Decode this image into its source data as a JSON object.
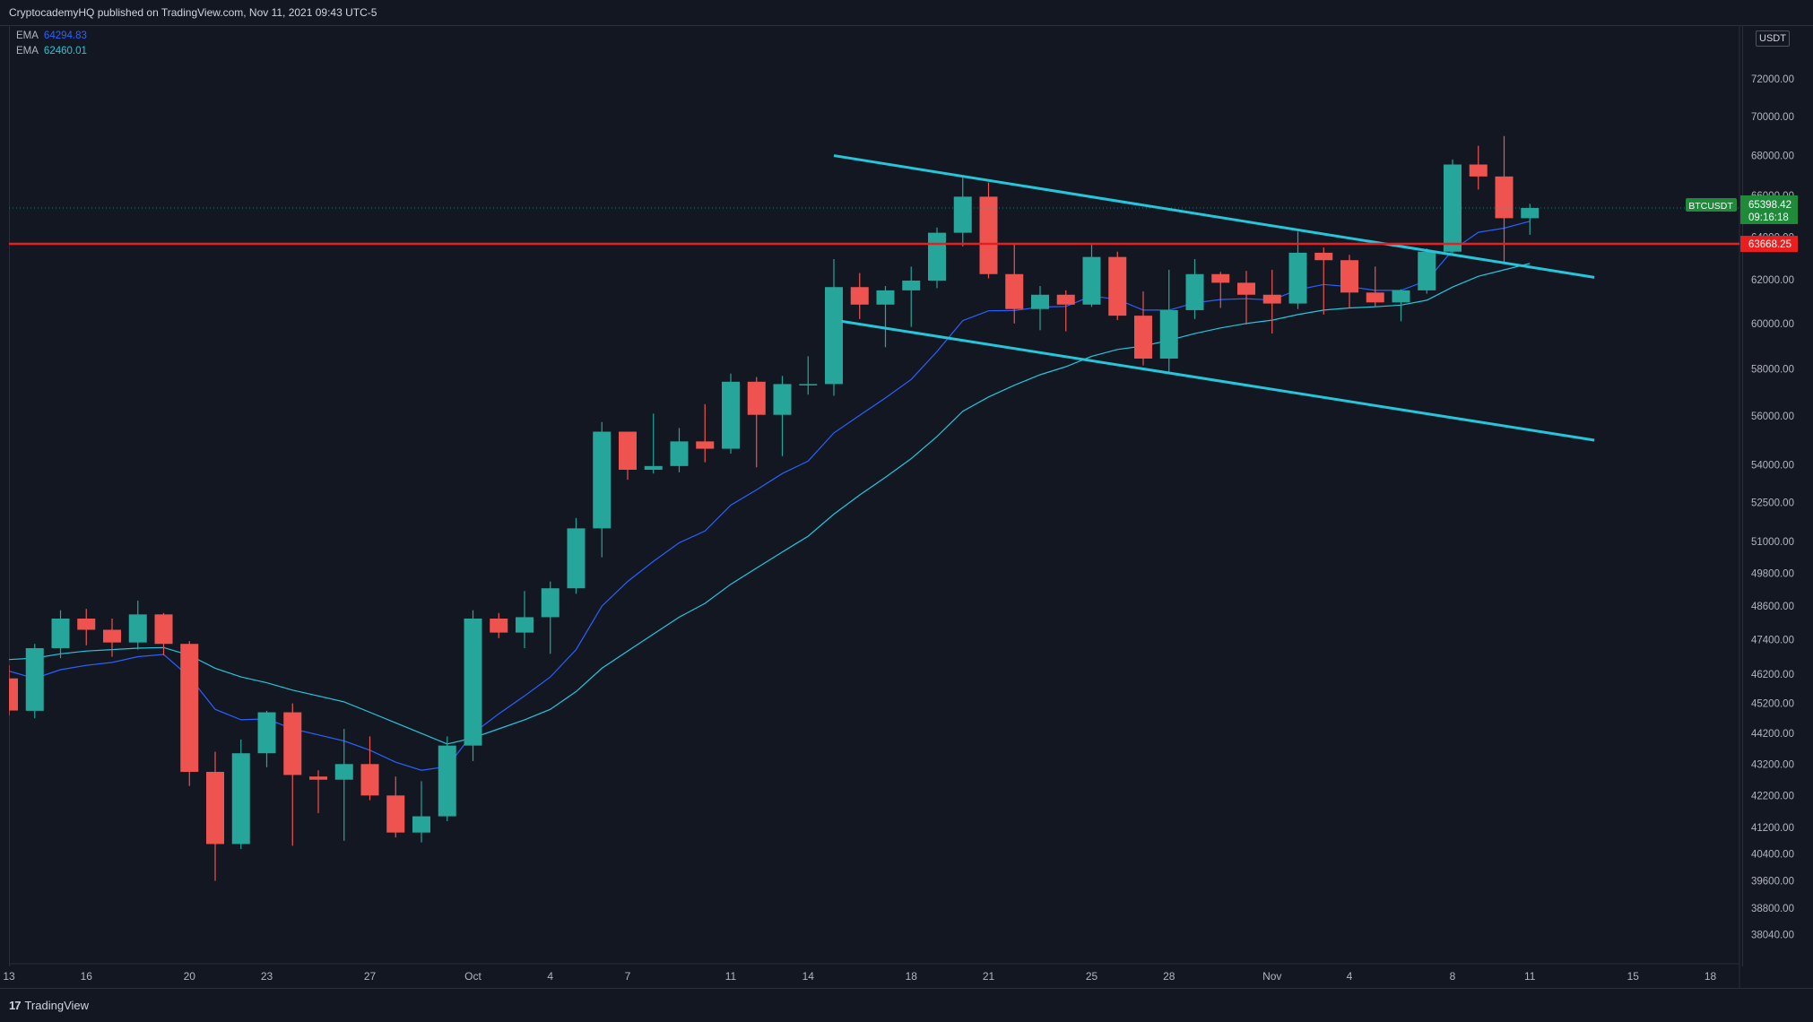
{
  "publisher_text": "CryptocademyHQ published on TradingView.com, Nov 11, 2021 09:43 UTC-5",
  "brand": "TradingView",
  "brand_mark": "17",
  "currency_unit": "USDT",
  "legend": [
    {
      "label": "EMA",
      "value": "64294.83",
      "color": "#2962ff"
    },
    {
      "label": "EMA",
      "value": "62460.01",
      "color": "#26c6da"
    }
  ],
  "price_tag": {
    "symbol": "BTCUSDT",
    "price": "65398.42",
    "countdown": "09:16:18",
    "color": "#1e8a3a"
  },
  "level_tag": {
    "price": "63668.25",
    "color": "#e91e1e"
  },
  "colors": {
    "up": "#26a69a",
    "down": "#ef5350",
    "background": "#131722",
    "trendline": "#26c6da",
    "level": "#e91e1e"
  },
  "chart_data": {
    "type": "candlestick",
    "symbol": "BTCUSDT",
    "y_scale": "log",
    "ylim": [
      37200,
      74500
    ],
    "y_ticks": [
      "72000.00",
      "70000.00",
      "68000.00",
      "66000.00",
      "64000.00",
      "62000.00",
      "60000.00",
      "58000.00",
      "56000.00",
      "54000.00",
      "52500.00",
      "51000.00",
      "49800.00",
      "48600.00",
      "47400.00",
      "46200.00",
      "45200.00",
      "44200.00",
      "43200.00",
      "42200.00",
      "41200.00",
      "40400.00",
      "39600.00",
      "38800.00",
      "38040.00"
    ],
    "y_tick_values": [
      72000,
      70000,
      68000,
      66000,
      64000,
      62000,
      60000,
      58000,
      56000,
      54000,
      52500,
      51000,
      49800,
      48600,
      47400,
      46200,
      45200,
      44200,
      43200,
      42200,
      41200,
      40400,
      39600,
      38800,
      38040
    ],
    "x_ticks": [
      {
        "label": "13",
        "index": 0
      },
      {
        "label": "16",
        "index": 3
      },
      {
        "label": "20",
        "index": 7
      },
      {
        "label": "23",
        "index": 10
      },
      {
        "label": "27",
        "index": 14
      },
      {
        "label": "Oct",
        "index": 18
      },
      {
        "label": "4",
        "index": 21
      },
      {
        "label": "7",
        "index": 24
      },
      {
        "label": "11",
        "index": 28
      },
      {
        "label": "14",
        "index": 31
      },
      {
        "label": "18",
        "index": 35
      },
      {
        "label": "21",
        "index": 38
      },
      {
        "label": "25",
        "index": 42
      },
      {
        "label": "28",
        "index": 45
      },
      {
        "label": "Nov",
        "index": 49
      },
      {
        "label": "4",
        "index": 52
      },
      {
        "label": "8",
        "index": 56
      },
      {
        "label": "11",
        "index": 59
      },
      {
        "label": "15",
        "index": 63
      },
      {
        "label": "18",
        "index": 66
      }
    ],
    "candles": [
      {
        "date": "Sep 13",
        "o": 46050,
        "h": 46500,
        "l": 44800,
        "c": 44960
      },
      {
        "date": "Sep 14",
        "o": 44950,
        "h": 47250,
        "l": 44700,
        "c": 47100
      },
      {
        "date": "Sep 15",
        "o": 47100,
        "h": 48450,
        "l": 46750,
        "c": 48150
      },
      {
        "date": "Sep 16",
        "o": 48150,
        "h": 48500,
        "l": 47200,
        "c": 47750
      },
      {
        "date": "Sep 17",
        "o": 47750,
        "h": 48150,
        "l": 46800,
        "c": 47300
      },
      {
        "date": "Sep 18",
        "o": 47300,
        "h": 48800,
        "l": 47050,
        "c": 48300
      },
      {
        "date": "Sep 19",
        "o": 48300,
        "h": 48350,
        "l": 46850,
        "c": 47250
      },
      {
        "date": "Sep 20",
        "o": 47250,
        "h": 47350,
        "l": 42500,
        "c": 42950
      },
      {
        "date": "Sep 21",
        "o": 42950,
        "h": 43600,
        "l": 39600,
        "c": 40700
      },
      {
        "date": "Sep 22",
        "o": 40700,
        "h": 44000,
        "l": 40550,
        "c": 43550
      },
      {
        "date": "Sep 23",
        "o": 43550,
        "h": 44950,
        "l": 43100,
        "c": 44900
      },
      {
        "date": "Sep 24",
        "o": 44900,
        "h": 45200,
        "l": 40650,
        "c": 42850
      },
      {
        "date": "Sep 25",
        "o": 42800,
        "h": 43000,
        "l": 41650,
        "c": 42700
      },
      {
        "date": "Sep 26",
        "o": 42700,
        "h": 44350,
        "l": 40800,
        "c": 43200
      },
      {
        "date": "Sep 27",
        "o": 43200,
        "h": 44100,
        "l": 42050,
        "c": 42200
      },
      {
        "date": "Sep 28",
        "o": 42200,
        "h": 42800,
        "l": 40900,
        "c": 41050
      },
      {
        "date": "Sep 29",
        "o": 41050,
        "h": 42650,
        "l": 40750,
        "c": 41550
      },
      {
        "date": "Sep 30",
        "o": 41550,
        "h": 44100,
        "l": 41400,
        "c": 43800
      },
      {
        "date": "Oct 1",
        "o": 43800,
        "h": 48450,
        "l": 43300,
        "c": 48150
      },
      {
        "date": "Oct 2",
        "o": 48150,
        "h": 48350,
        "l": 47450,
        "c": 47650
      },
      {
        "date": "Oct 3",
        "o": 47650,
        "h": 49150,
        "l": 47100,
        "c": 48200
      },
      {
        "date": "Oct 4",
        "o": 48200,
        "h": 49500,
        "l": 46900,
        "c": 49250
      },
      {
        "date": "Oct 5",
        "o": 49250,
        "h": 51900,
        "l": 49050,
        "c": 51500
      },
      {
        "date": "Oct 6",
        "o": 51500,
        "h": 55750,
        "l": 50400,
        "c": 55350
      },
      {
        "date": "Oct 7",
        "o": 55350,
        "h": 55350,
        "l": 53400,
        "c": 53800
      },
      {
        "date": "Oct 8",
        "o": 53800,
        "h": 56100,
        "l": 53650,
        "c": 53950
      },
      {
        "date": "Oct 9",
        "o": 53950,
        "h": 55500,
        "l": 53700,
        "c": 54950
      },
      {
        "date": "Oct 10",
        "o": 54950,
        "h": 56500,
        "l": 54100,
        "c": 54650
      },
      {
        "date": "Oct 11",
        "o": 54650,
        "h": 57800,
        "l": 54450,
        "c": 57450
      },
      {
        "date": "Oct 12",
        "o": 57450,
        "h": 57650,
        "l": 53900,
        "c": 56050
      },
      {
        "date": "Oct 13",
        "o": 56050,
        "h": 57700,
        "l": 54350,
        "c": 57350
      },
      {
        "date": "Oct 14",
        "o": 57350,
        "h": 58550,
        "l": 56900,
        "c": 57350
      },
      {
        "date": "Oct 15",
        "o": 57350,
        "h": 62950,
        "l": 56850,
        "c": 61650
      },
      {
        "date": "Oct 16",
        "o": 61650,
        "h": 62300,
        "l": 60200,
        "c": 60850
      },
      {
        "date": "Oct 17",
        "o": 60850,
        "h": 61700,
        "l": 58950,
        "c": 61500
      },
      {
        "date": "Oct 18",
        "o": 61500,
        "h": 62600,
        "l": 59850,
        "c": 61950
      },
      {
        "date": "Oct 19",
        "o": 61950,
        "h": 64450,
        "l": 61600,
        "c": 64200
      },
      {
        "date": "Oct 20",
        "o": 64200,
        "h": 66950,
        "l": 63550,
        "c": 65950
      },
      {
        "date": "Oct 21",
        "o": 65950,
        "h": 66650,
        "l": 62050,
        "c": 62250
      },
      {
        "date": "Oct 22",
        "o": 62250,
        "h": 63650,
        "l": 60000,
        "c": 60650
      },
      {
        "date": "Oct 23",
        "o": 60650,
        "h": 61700,
        "l": 59700,
        "c": 61300
      },
      {
        "date": "Oct 24",
        "o": 61300,
        "h": 61500,
        "l": 59650,
        "c": 60850
      },
      {
        "date": "Oct 25",
        "o": 60850,
        "h": 63700,
        "l": 60750,
        "c": 63050
      },
      {
        "date": "Oct 26",
        "o": 63050,
        "h": 63300,
        "l": 60150,
        "c": 60350
      },
      {
        "date": "Oct 27",
        "o": 60350,
        "h": 61450,
        "l": 58150,
        "c": 58450
      },
      {
        "date": "Oct 28",
        "o": 58450,
        "h": 62450,
        "l": 57850,
        "c": 60600
      },
      {
        "date": "Oct 29",
        "o": 60600,
        "h": 62950,
        "l": 60200,
        "c": 62250
      },
      {
        "date": "Oct 30",
        "o": 62250,
        "h": 62350,
        "l": 60700,
        "c": 61850
      },
      {
        "date": "Oct 31",
        "o": 61850,
        "h": 62400,
        "l": 59950,
        "c": 61300
      },
      {
        "date": "Nov 1",
        "o": 61300,
        "h": 62450,
        "l": 59550,
        "c": 60900
      },
      {
        "date": "Nov 2",
        "o": 60900,
        "h": 64250,
        "l": 60650,
        "c": 63250
      },
      {
        "date": "Nov 3",
        "o": 63250,
        "h": 63500,
        "l": 60400,
        "c": 62900
      },
      {
        "date": "Nov 4",
        "o": 62900,
        "h": 63150,
        "l": 60700,
        "c": 61400
      },
      {
        "date": "Nov 5",
        "o": 61400,
        "h": 62600,
        "l": 60750,
        "c": 60950
      },
      {
        "date": "Nov 6",
        "o": 60950,
        "h": 61550,
        "l": 60100,
        "c": 61500
      },
      {
        "date": "Nov 7",
        "o": 61500,
        "h": 63450,
        "l": 61350,
        "c": 63300
      },
      {
        "date": "Nov 8",
        "o": 63300,
        "h": 67800,
        "l": 63100,
        "c": 67550
      },
      {
        "date": "Nov 9",
        "o": 67550,
        "h": 68500,
        "l": 66300,
        "c": 66950
      },
      {
        "date": "Nov 10",
        "o": 66950,
        "h": 69000,
        "l": 62800,
        "c": 64900
      },
      {
        "date": "Nov 11",
        "o": 64900,
        "h": 65600,
        "l": 64100,
        "c": 65398
      }
    ],
    "ema_fast": [
      46300,
      46050,
      46350,
      46500,
      46600,
      46800,
      46880,
      46100,
      45000,
      44650,
      44680,
      44350,
      44150,
      43950,
      43650,
      43260,
      43000,
      43120,
      44200,
      44850,
      45450,
      46100,
      47050,
      48600,
      49500,
      50250,
      50950,
      51400,
      52400,
      53000,
      53650,
      54150,
      55300,
      56030,
      56760,
      57550,
      58760,
      60130,
      60570,
      60580,
      60740,
      60770,
      61240,
      61090,
      60600,
      60600,
      60930,
      61080,
      61120,
      61060,
      61530,
      61770,
      61670,
      61500,
      61500,
      61950,
      63370,
      64220,
      64420,
      64750
    ],
    "ema_slow": [
      46700,
      46750,
      46900,
      47000,
      47050,
      47100,
      47120,
      46850,
      46400,
      46100,
      45900,
      45650,
      45450,
      45250,
      44900,
      44550,
      44200,
      43850,
      44050,
      44350,
      44650,
      45000,
      45600,
      46400,
      47000,
      47600,
      48200,
      48700,
      49400,
      50000,
      50600,
      51200,
      52050,
      52800,
      53500,
      54250,
      55150,
      56200,
      56800,
      57300,
      57750,
      58100,
      58550,
      58850,
      59000,
      59250,
      59550,
      59800,
      60000,
      60150,
      60400,
      60600,
      60700,
      60750,
      60830,
      61050,
      61650,
      62150,
      62450,
      62750
    ],
    "trendlines": [
      {
        "name": "upper",
        "x1": 32,
        "y1": 68000,
        "x2": 61.5,
        "y2": 62100
      },
      {
        "name": "lower",
        "x1": 32.3,
        "y1": 60100,
        "x2": 61.5,
        "y2": 55000
      }
    ],
    "horizontal_levels": [
      63668.25
    ]
  }
}
